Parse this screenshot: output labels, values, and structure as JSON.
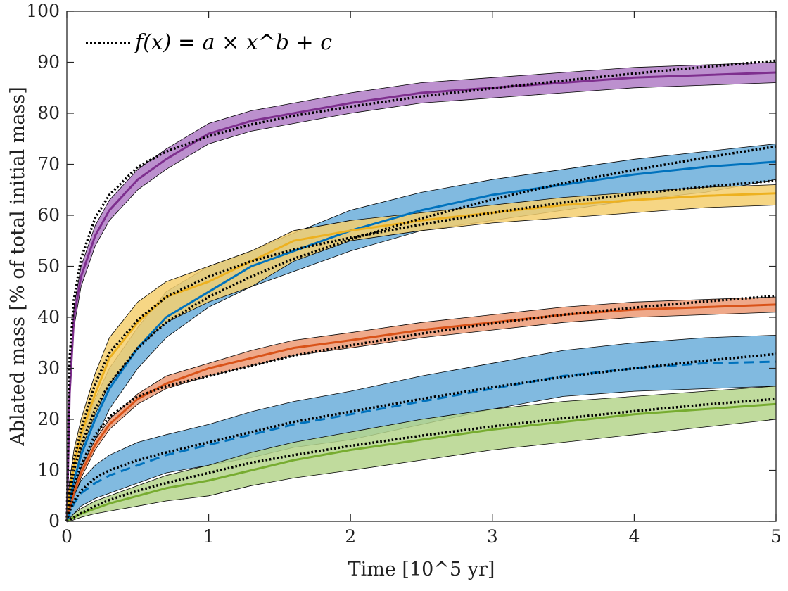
{
  "chart_data": {
    "type": "line",
    "title": "",
    "xlabel": "Time [10^5 yr]",
    "ylabel": "Ablated mass [% of total initial mass]",
    "xlim": [
      0,
      5
    ],
    "ylim": [
      0,
      100
    ],
    "xticks": [
      "0",
      "1",
      "2",
      "3",
      "4",
      "5"
    ],
    "yticks": [
      "0",
      "10",
      "20",
      "30",
      "40",
      "50",
      "60",
      "70",
      "80",
      "90",
      "100"
    ],
    "grid": false,
    "legend": {
      "position": "top-left",
      "label": "f(x) = a × x^b + c",
      "style": "dotted-black"
    },
    "x": [
      0,
      0.02,
      0.05,
      0.1,
      0.2,
      0.3,
      0.5,
      0.7,
      1.0,
      1.3,
      1.6,
      2.0,
      2.5,
      3.0,
      3.5,
      4.0,
      4.5,
      5.0
    ],
    "series": [
      {
        "name": "purple",
        "color": "#7e2f8e",
        "band_color": "#b07cc6",
        "line_style": "solid",
        "values": [
          0,
          25,
          40,
          48,
          56,
          61,
          67,
          71,
          76,
          78.5,
          80,
          82,
          84,
          85,
          86,
          87,
          87.5,
          88
        ],
        "lower": [
          0,
          23,
          38,
          46,
          54,
          59,
          65,
          69,
          74,
          76.5,
          78,
          80,
          82,
          83,
          84,
          85,
          85.5,
          86
        ],
        "upper": [
          0,
          27,
          42,
          50,
          58,
          63,
          69,
          73,
          78,
          80.5,
          82,
          84,
          86,
          87,
          88,
          89,
          89.5,
          90
        ],
        "fit": [
          0,
          32,
          43.5,
          51.5,
          59.5,
          64,
          69.5,
          72.5,
          75.5,
          77.8,
          79.5,
          81.3,
          83.3,
          84.9,
          86.4,
          87.8,
          89.1,
          90.3
        ]
      },
      {
        "name": "blue-solid",
        "color": "#0072bd",
        "band_color": "#6baedb",
        "line_style": "solid",
        "values": [
          0,
          4,
          8,
          13,
          20,
          26,
          34,
          40,
          45,
          50,
          53,
          57,
          61,
          64,
          66,
          68,
          69.5,
          70.5
        ],
        "lower": [
          0,
          2,
          5,
          10,
          16,
          22,
          30,
          36,
          42,
          46,
          49,
          53,
          57,
          59,
          61,
          63,
          64.5,
          67
        ],
        "upper": [
          0,
          6,
          11,
          16,
          24,
          30,
          38,
          45,
          50,
          53,
          56.5,
          61,
          64.5,
          67,
          69,
          71,
          72.5,
          74
        ],
        "fit": [
          0,
          5,
          10,
          15,
          22,
          27,
          34,
          39,
          44,
          48,
          51.5,
          55.3,
          59.4,
          63.1,
          66.3,
          68.9,
          71.3,
          73.5
        ]
      },
      {
        "name": "yellow",
        "color": "#edb120",
        "band_color": "#f5cf6e",
        "line_style": "solid",
        "values": [
          0,
          6,
          11,
          17,
          25,
          32,
          39,
          44,
          47,
          51,
          55,
          57,
          59,
          60.5,
          62,
          63,
          63.8,
          64.3
        ],
        "lower": [
          0,
          4,
          8,
          14,
          21,
          27,
          34,
          39,
          43,
          46,
          51,
          55,
          57,
          58.5,
          59.5,
          60.5,
          61.5,
          62
        ],
        "upper": [
          0,
          8,
          14,
          20,
          29,
          36,
          43,
          47,
          50,
          53,
          57,
          59,
          60.5,
          62,
          63.5,
          64.5,
          65.5,
          66
        ],
        "fit": [
          0,
          7,
          12,
          18,
          27,
          33,
          39.5,
          44,
          48,
          51,
          53.3,
          55.6,
          58.2,
          60.5,
          62.5,
          64.2,
          65.6,
          66.8
        ]
      },
      {
        "name": "orange",
        "color": "#d95319",
        "band_color": "#ec9a76",
        "line_style": "solid",
        "values": [
          0,
          2.5,
          5.5,
          9.5,
          15,
          19,
          24,
          27,
          30,
          32,
          34,
          35.5,
          37.5,
          39,
          40.5,
          41.5,
          42,
          42.5
        ],
        "lower": [
          0,
          1.5,
          4.5,
          8.5,
          14,
          18,
          23,
          26,
          28.5,
          30.5,
          32.5,
          34,
          36,
          37.5,
          39,
          40,
          40.5,
          41
        ],
        "upper": [
          0,
          3.5,
          6.5,
          10.5,
          16,
          20,
          25,
          28.5,
          31,
          33.5,
          35.5,
          37,
          39,
          40.5,
          42,
          43,
          43.5,
          44
        ],
        "fit": [
          0,
          3.5,
          7,
          11,
          17,
          20.5,
          24.5,
          26.5,
          28.5,
          30.5,
          32.5,
          34.5,
          36.8,
          38.8,
          40.5,
          41.9,
          43.1,
          44.2
        ]
      },
      {
        "name": "blue-dashed",
        "color": "#0072bd",
        "band_color": "#6baedb",
        "line_style": "dashed",
        "values": [
          0,
          1.5,
          3.5,
          5.5,
          7.5,
          9,
          11,
          13,
          15,
          17,
          19,
          21,
          23.5,
          26,
          28.5,
          30,
          31,
          31.3
        ],
        "lower": [
          0,
          0.5,
          1.5,
          3,
          4.5,
          5.5,
          7.5,
          9.5,
          11,
          12.5,
          14.5,
          16,
          19,
          22,
          24.5,
          25.5,
          26,
          26.5
        ],
        "upper": [
          0,
          2.5,
          5,
          8,
          11,
          13,
          15.5,
          17,
          19,
          21.5,
          23.5,
          25.5,
          28.5,
          31,
          33.5,
          35,
          36,
          36.5
        ],
        "fit": [
          0,
          2,
          4,
          6,
          8.5,
          10,
          12,
          13.5,
          15.5,
          17.5,
          19.5,
          21.5,
          24,
          26.3,
          28.3,
          30,
          31.5,
          32.8
        ]
      },
      {
        "name": "green",
        "color": "#77ac30",
        "band_color": "#b5d58c",
        "line_style": "solid",
        "values": [
          0,
          0.3,
          0.8,
          1.5,
          2.5,
          3.5,
          5,
          6.5,
          8,
          10,
          12,
          14,
          16,
          18,
          19.5,
          21,
          22,
          23
        ],
        "lower": [
          0,
          0,
          0.3,
          0.8,
          1.5,
          2,
          3,
          4,
          5,
          7,
          8.5,
          10,
          12,
          14,
          15.5,
          17,
          18.5,
          20
        ],
        "upper": [
          0,
          0.6,
          1.5,
          2.5,
          4,
          5,
          7,
          9,
          11,
          13.5,
          15.5,
          17.5,
          20,
          22,
          23.5,
          24.5,
          25.5,
          26.5
        ],
        "fit": [
          0,
          0.3,
          0.8,
          1.6,
          3,
          4.2,
          6,
          7.5,
          9.5,
          11.5,
          13,
          14.8,
          16.8,
          18.6,
          20.2,
          21.6,
          22.9,
          24
        ]
      }
    ]
  }
}
